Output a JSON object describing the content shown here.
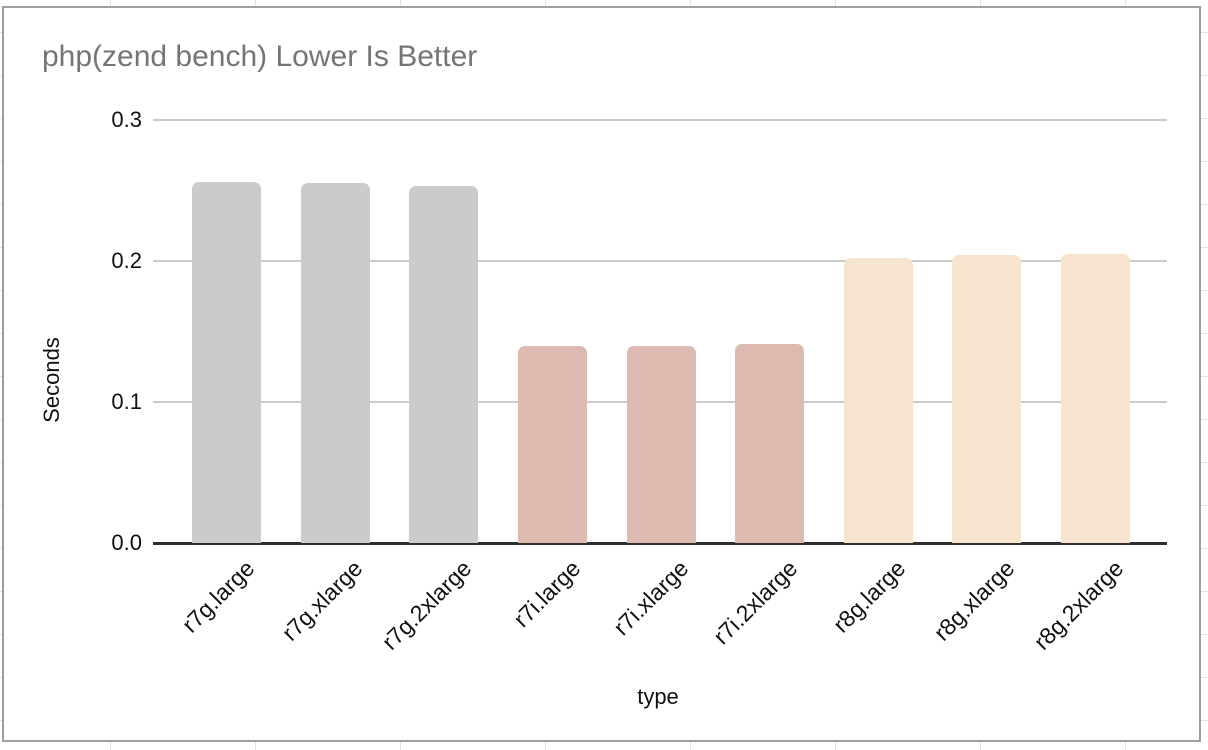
{
  "chart_data": {
    "type": "bar",
    "title": "php(zend bench) Lower Is Better",
    "xlabel": "type",
    "ylabel": "Seconds",
    "ylim": [
      0,
      0.3
    ],
    "yticks": [
      0.3,
      0.2,
      0.1,
      0.0
    ],
    "grid": true,
    "legend": "none",
    "categories": [
      "r7g.large",
      "r7g.xlarge",
      "r7g.2xlarge",
      "r7i.large",
      "r7i.xlarge",
      "r7i.2xlarge",
      "r8g.large",
      "r8g.xlarge",
      "r8g.2xlarge"
    ],
    "values": [
      0.256,
      0.255,
      0.253,
      0.14,
      0.14,
      0.141,
      0.202,
      0.204,
      0.205
    ],
    "bars": [
      {
        "label": "r7g.large",
        "value": 0.256,
        "color": "#cbcbcb"
      },
      {
        "label": "r7g.xlarge",
        "value": 0.255,
        "color": "#cbcbcb"
      },
      {
        "label": "r7g.2xlarge",
        "value": 0.253,
        "color": "#cbcbcb"
      },
      {
        "label": "r7i.large",
        "value": 0.14,
        "color": "#ddbab0"
      },
      {
        "label": "r7i.xlarge",
        "value": 0.14,
        "color": "#ddbab0"
      },
      {
        "label": "r7i.2xlarge",
        "value": 0.141,
        "color": "#ddbab0"
      },
      {
        "label": "r8g.large",
        "value": 0.202,
        "color": "#f7e4ce"
      },
      {
        "label": "r8g.xlarge",
        "value": 0.204,
        "color": "#f7e4ce"
      },
      {
        "label": "r8g.2xlarge",
        "value": 0.205,
        "color": "#f7e4ce"
      }
    ],
    "colors": {
      "r7g_series": "#cbcbcb",
      "r7i_series": "#ddbab0",
      "r8g_series": "#f7e4ce",
      "title_text": "#757575",
      "axis_text": "#111111",
      "gridline": "#cbcbcb",
      "baseline": "#2e2e2e"
    }
  }
}
